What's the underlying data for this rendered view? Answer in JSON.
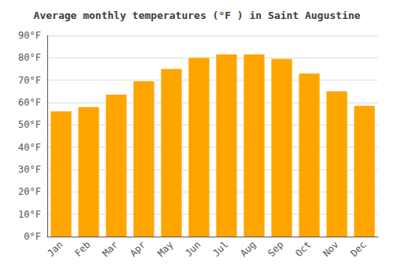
{
  "chart_data": {
    "type": "bar",
    "title": "Average monthly temperatures (°F ) in Saint Augustine",
    "categories": [
      "Jan",
      "Feb",
      "Mar",
      "Apr",
      "May",
      "Jun",
      "Jul",
      "Aug",
      "Sep",
      "Oct",
      "Nov",
      "Dec"
    ],
    "values": [
      56,
      58,
      63.5,
      69.5,
      75,
      80,
      81.5,
      81.5,
      79.5,
      73,
      65,
      58.5
    ],
    "color": "#FFA500",
    "ylim": [
      0,
      90
    ],
    "yticks": [
      {
        "value": 0,
        "label": "0°F"
      },
      {
        "value": 10,
        "label": "10°F"
      },
      {
        "value": 20,
        "label": "20°F"
      },
      {
        "value": 30,
        "label": "30°F"
      },
      {
        "value": 40,
        "label": "40°F"
      },
      {
        "value": 50,
        "label": "50°F"
      },
      {
        "value": 60,
        "label": "60°F"
      },
      {
        "value": 70,
        "label": "70°F"
      },
      {
        "value": 80,
        "label": "80°F"
      },
      {
        "value": 90,
        "label": "90°F"
      }
    ],
    "grid": true
  }
}
